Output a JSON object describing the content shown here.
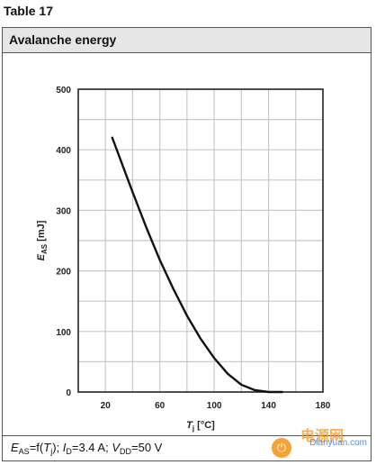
{
  "table_label": "Table 17",
  "header": {
    "title": "Avalanche energy"
  },
  "caption": {
    "e": "E",
    "e_sub": "AS",
    "eq_open": "=f(",
    "t": "T",
    "t_sub": "j",
    "eq_close": "); ",
    "i": "I",
    "i_sub": "D",
    "i_val": "=3.4 A; ",
    "v": "V",
    "v_sub": "DD",
    "v_val": "=50 V"
  },
  "watermark": {
    "brand_cn": "电源网",
    "brand_url": "Dianyuan.com"
  },
  "chart_data": {
    "type": "line",
    "xlabel_main": "T",
    "xlabel_sub": "j",
    "xlabel_unit": " [°C]",
    "ylabel_main": "E",
    "ylabel_sub": "AS",
    "ylabel_unit": " [mJ]",
    "xlim": [
      0,
      180
    ],
    "ylim": [
      0,
      500
    ],
    "x_ticks": [
      "20",
      "60",
      "100",
      "140",
      "180"
    ],
    "x_tick_values": [
      20,
      60,
      100,
      140,
      180
    ],
    "x_grid_step": 20,
    "y_ticks": [
      "0",
      "100",
      "200",
      "300",
      "400",
      "500"
    ],
    "y_tick_values": [
      0,
      100,
      200,
      300,
      400,
      500
    ],
    "y_grid_step": 50,
    "grid": true,
    "series": [
      {
        "x": [
          25,
          30,
          40,
          50,
          60,
          70,
          80,
          90,
          100,
          110,
          120,
          130,
          140,
          150
        ],
        "values": [
          420,
          390,
          330,
          272,
          218,
          170,
          126,
          88,
          56,
          30,
          12,
          3,
          0,
          0
        ]
      }
    ]
  }
}
